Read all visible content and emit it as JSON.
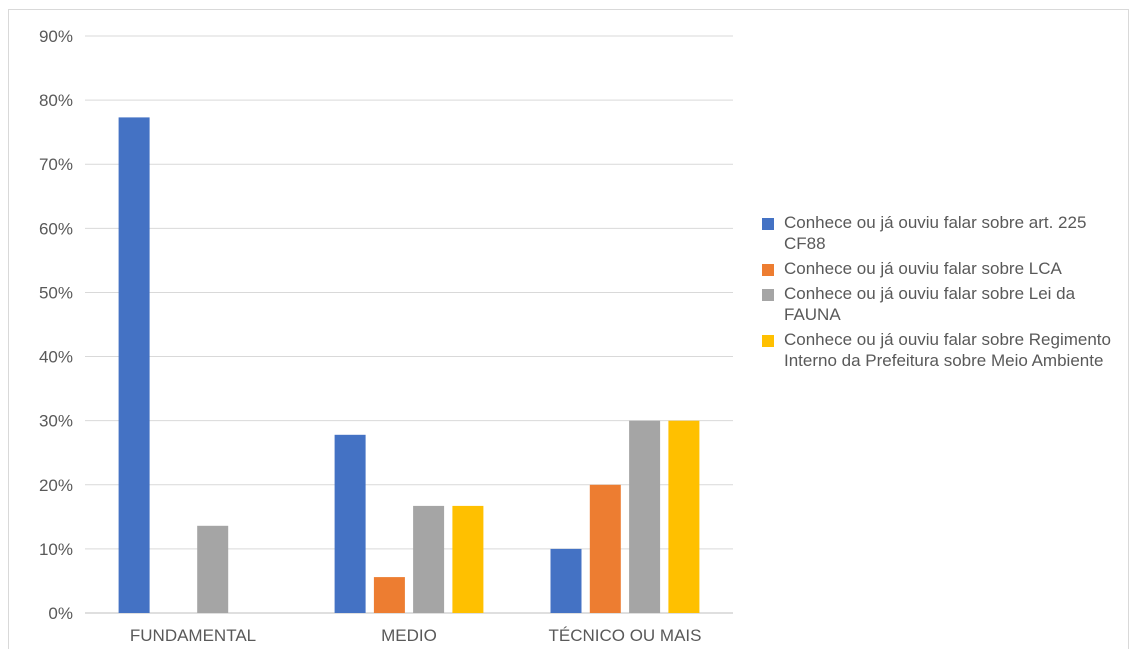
{
  "chart_data": {
    "type": "bar",
    "categories": [
      "FUNDAMENTAL",
      "MEDIO",
      "TÉCNICO OU MAIS"
    ],
    "series": [
      {
        "name": "Conhece ou já ouviu falar sobre art. 225 CF88",
        "color": "#4472C4",
        "values": [
          77.3,
          27.8,
          10.0
        ]
      },
      {
        "name": "Conhece ou já ouviu falar sobre LCA",
        "color": "#ED7D31",
        "values": [
          0.0,
          5.6,
          20.0
        ]
      },
      {
        "name": "Conhece ou já ouviu falar sobre Lei da FAUNA",
        "color": "#A5A5A5",
        "values": [
          13.6,
          16.7,
          30.0
        ]
      },
      {
        "name": "Conhece ou já ouviu falar sobre Regimento Interno da Prefeitura sobre Meio Ambiente",
        "color": "#FFC000",
        "values": [
          0.0,
          16.7,
          30.0
        ]
      }
    ],
    "yticks": [
      "0%",
      "10%",
      "20%",
      "30%",
      "40%",
      "50%",
      "60%",
      "70%",
      "80%",
      "90%"
    ],
    "ylim": [
      0,
      90
    ],
    "title": "",
    "xlabel": "",
    "ylabel": "",
    "grid": true,
    "legend_position": "right"
  }
}
